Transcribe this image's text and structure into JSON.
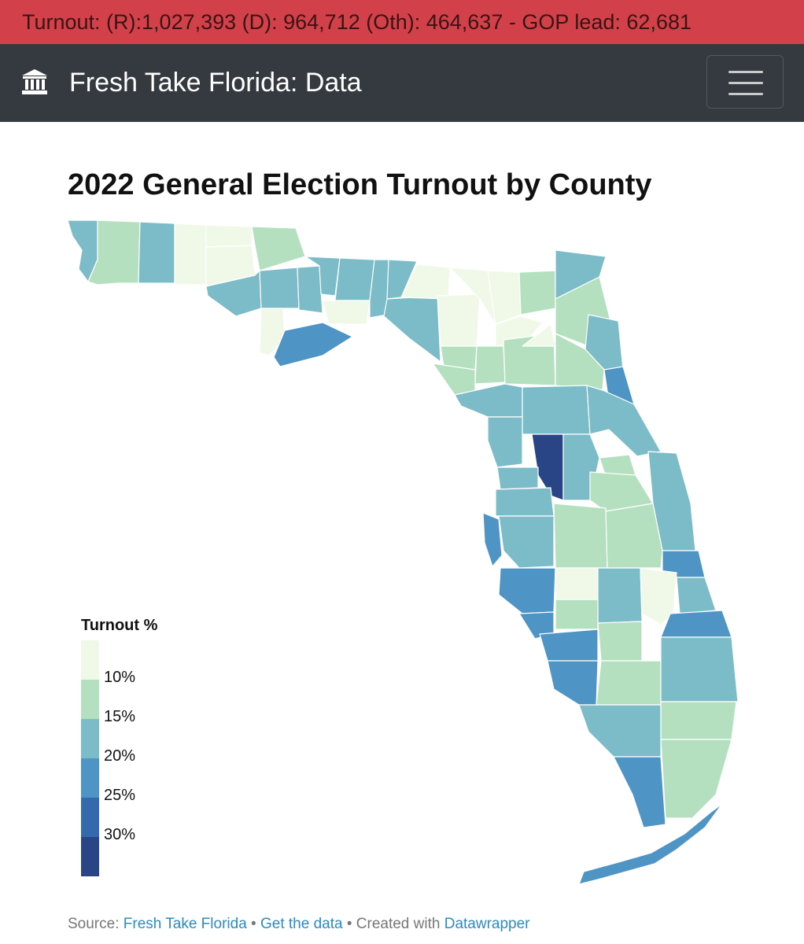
{
  "banner": {
    "text": "Turnout: (R):1,027,393 (D): 964,712 (Oth): 464,637 - GOP lead: 62,681"
  },
  "navbar": {
    "brand": "Fresh Take Florida: Data",
    "brand_icon": "bank-building-icon",
    "menu_icon": "hamburger-menu-icon"
  },
  "chart_data": {
    "type": "choropleth",
    "title": "2022 General Election Turnout by County",
    "region": "Florida counties",
    "legend": {
      "title": "Turnout %",
      "placement": "bottom-left",
      "thresholds": [
        "10%",
        "15%",
        "20%",
        "25%",
        "30%"
      ],
      "colors": [
        "#f0f9e8",
        "#b4e0c0",
        "#7bbcc8",
        "#4e94c4",
        "#3569ae",
        "#2a4585"
      ]
    }
  },
  "footer": {
    "source_label": "Source:",
    "source_link": "Fresh Take Florida",
    "separator": "•",
    "data_link": "Get the data",
    "created_label": "Created with",
    "created_link": "Datawrapper"
  }
}
